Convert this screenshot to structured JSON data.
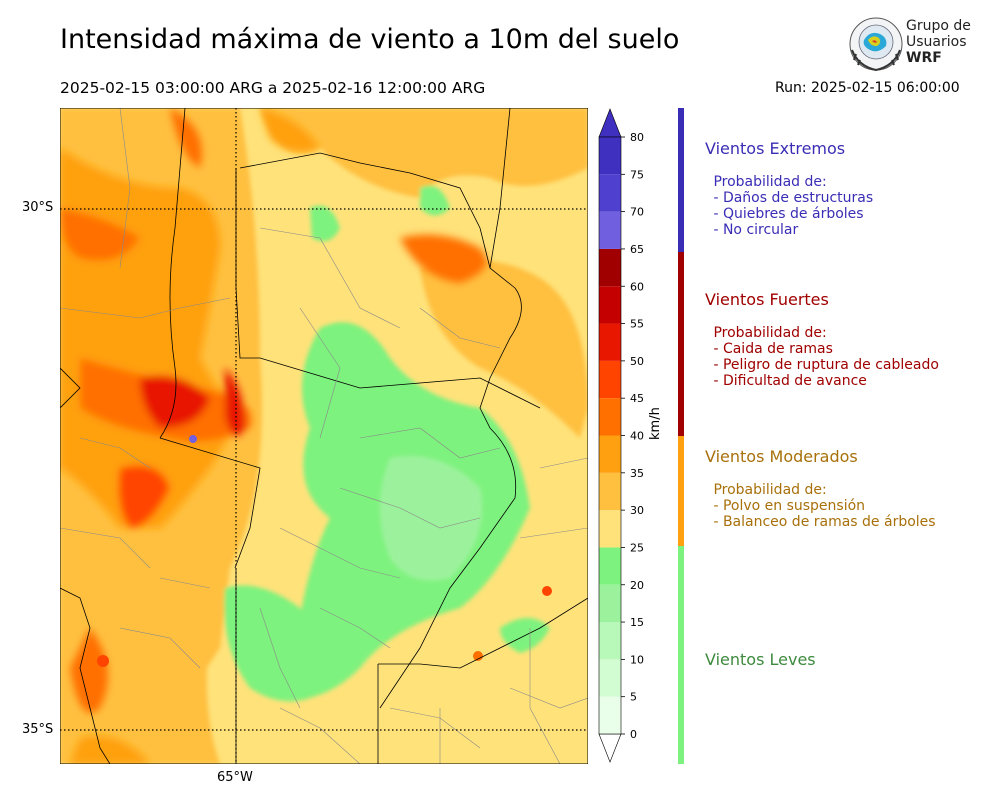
{
  "title": "Intensidad máxima de viento a 10m del suelo",
  "period": "2025-02-15 03:00:00 ARG  a  2025-02-16 12:00:00 ARG",
  "run": "Run: 2025-02-15 06:00:00",
  "logo": {
    "line1": "Grupo de",
    "line2": "Usuarios",
    "line3": "WRF"
  },
  "map": {
    "lat_labels": [
      "30°S",
      "35°S"
    ],
    "lon_labels": [
      "65°W"
    ]
  },
  "colorbar": {
    "unit": "km/h",
    "ticks": [
      "0",
      "5",
      "10",
      "15",
      "20",
      "25",
      "30",
      "35",
      "40",
      "45",
      "50",
      "55",
      "60",
      "65",
      "70",
      "75",
      "80"
    ],
    "colors": [
      "#eaffea",
      "#d2fcd2",
      "#b8f8b8",
      "#9cf29c",
      "#7ef27e",
      "#ffe27a",
      "#ffc040",
      "#ffa010",
      "#ff7000",
      "#ff4400",
      "#e81800",
      "#c40000",
      "#a00000",
      "#7060e0",
      "#5040d0",
      "#4030c0"
    ]
  },
  "categories": [
    {
      "title": "Vientos Extremos",
      "color": "#3a2db5",
      "lines": " Probabilidad de:\n - Daños de estructuras\n - Quiebres de árboles\n - No circular"
    },
    {
      "title": "Vientos Fuertes",
      "color": "#a00000",
      "lines": " Probabilidad de:\n - Caida de ramas\n - Peligro de ruptura de cableado\n - Dificultad de avance"
    },
    {
      "title": "Vientos Moderados",
      "color": "#a8700a",
      "lines": " Probabilidad de:\n - Polvo en suspensión\n - Balanceo de ramas de árboles"
    },
    {
      "title": "Vientos Leves",
      "color": "#3e8a3e",
      "lines": ""
    }
  ]
}
